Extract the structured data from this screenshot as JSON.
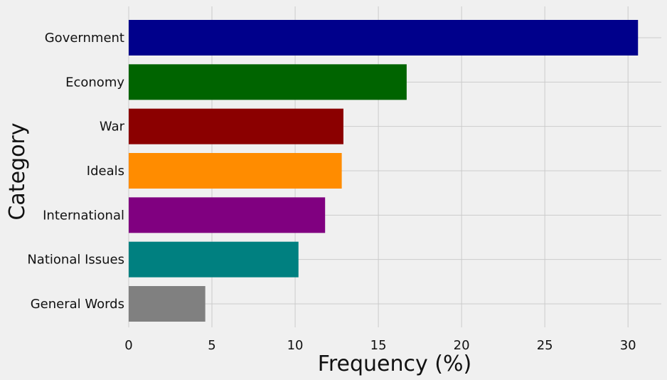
{
  "chart_data": {
    "type": "bar",
    "orientation": "horizontal",
    "title": "",
    "xlabel": "Frequency (%)",
    "ylabel": "Category",
    "xlim": [
      0,
      32
    ],
    "x_ticks": [
      "0",
      "5",
      "10",
      "15",
      "20",
      "25",
      "30"
    ],
    "grid": true,
    "categories": [
      "Government",
      "Economy",
      "War",
      "Ideals",
      "International",
      "National Issues",
      "General Words"
    ],
    "values": [
      30.6,
      16.7,
      12.9,
      12.8,
      11.8,
      10.2,
      4.6
    ],
    "colors": [
      "#00008b",
      "#006400",
      "#8b0000",
      "#ff8c00",
      "#800080",
      "#008080",
      "#808080"
    ],
    "background": "#f0f0f0"
  }
}
